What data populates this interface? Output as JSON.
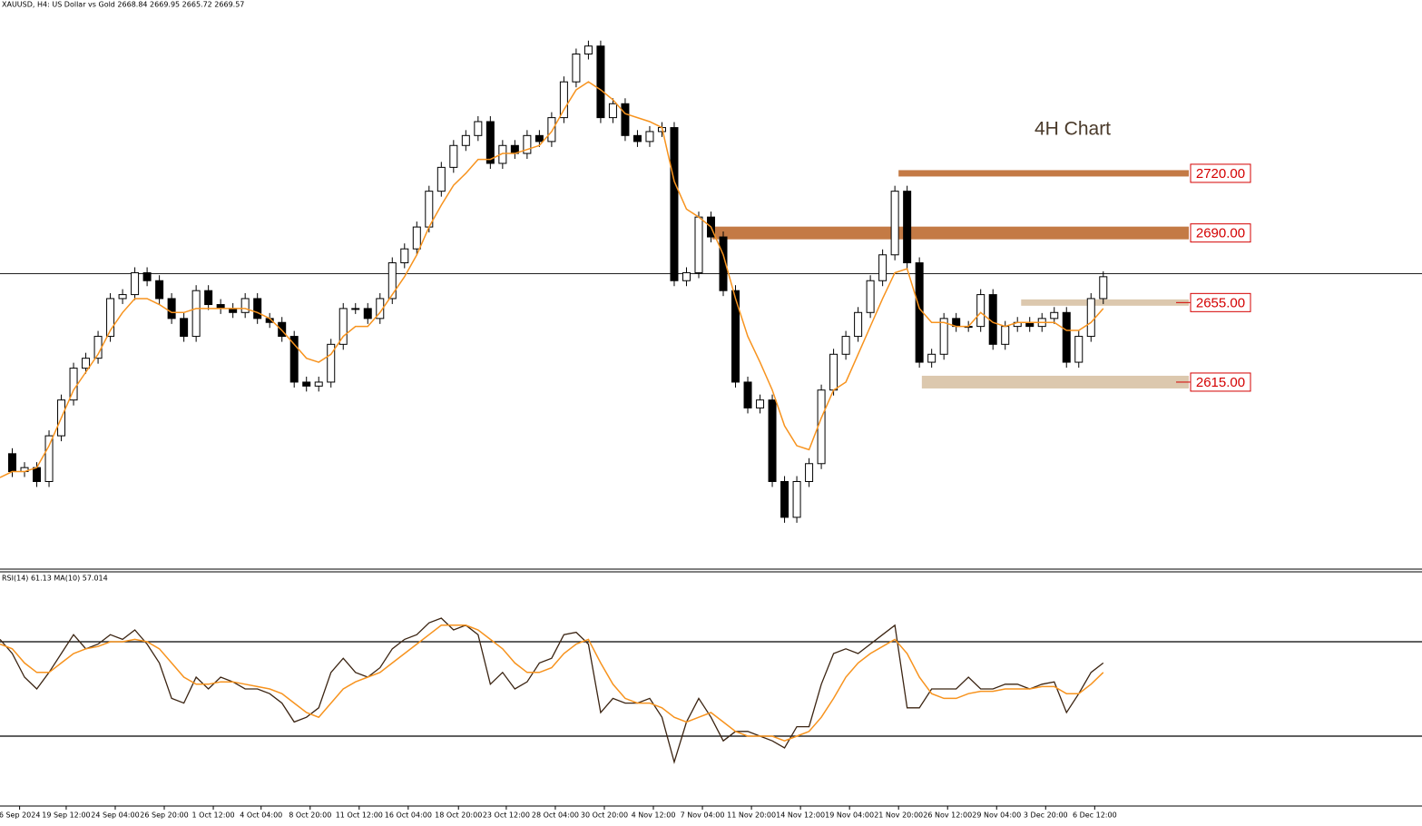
{
  "chart_data": [
    {
      "type": "candle",
      "title": "XAUUSD, H4:  US Dollar vs Gold  2668.84 2669.95 2665.72 2669.57",
      "annotation": "4H Chart",
      "xlim": [
        0,
        116
      ],
      "ylim": [
        2521.4,
        2802.6
      ],
      "last_price": 2669.57,
      "series": [
        {
          "color": "#000000",
          "values": [
            2579,
            2570,
            2572,
            2565,
            2588,
            2606,
            2622,
            2627,
            2638,
            2657,
            2659,
            2670,
            2666,
            2657,
            2647,
            2638,
            2661,
            2654,
            2652,
            2650,
            2657,
            2647,
            2645,
            2638,
            2615,
            2613,
            2615,
            2634,
            2652,
            2652,
            2647,
            2657,
            2675,
            2682,
            2693,
            2711,
            2723,
            2734,
            2739,
            2746,
            2725,
            2734,
            2730,
            2739,
            2736,
            2748,
            2766,
            2780,
            2784,
            2748,
            2755,
            2739,
            2736,
            2741,
            2743,
            2666,
            2670,
            2698,
            2688,
            2661,
            2615,
            2602,
            2606,
            2565,
            2547,
            2565,
            2574,
            2611,
            2629,
            2638,
            2650,
            2666,
            2679,
            2711,
            2675,
            2625,
            2629,
            2647,
            2643,
            2643,
            2659,
            2634,
            2643,
            2645,
            2643,
            2647,
            2650,
            2625,
            2638,
            2657,
            2668
          ]
        },
        {
          "color": "#f7931e",
          "values": [
            2567,
            2570,
            2570,
            2572,
            2583,
            2597,
            2611,
            2620,
            2629,
            2641,
            2650,
            2657,
            2657,
            2654,
            2650,
            2650,
            2652,
            2652,
            2652,
            2652,
            2652,
            2650,
            2647,
            2641,
            2634,
            2627,
            2625,
            2629,
            2638,
            2643,
            2643,
            2650,
            2659,
            2668,
            2679,
            2693,
            2704,
            2714,
            2720,
            2727,
            2727,
            2730,
            2730,
            2732,
            2734,
            2741,
            2752,
            2762,
            2766,
            2762,
            2757,
            2750,
            2748,
            2746,
            2743,
            2716,
            2702,
            2698,
            2693,
            2679,
            2657,
            2638,
            2625,
            2611,
            2593,
            2583,
            2581,
            2597,
            2611,
            2615,
            2629,
            2643,
            2657,
            2670,
            2672,
            2652,
            2645,
            2645,
            2643,
            2643,
            2650,
            2645,
            2643,
            2645,
            2645,
            2645,
            2645,
            2641,
            2641,
            2645,
            2652
          ]
        }
      ],
      "levels": [
        {
          "value": 2720,
          "label": "2720.00",
          "from": 73.3,
          "color": "#c47a45"
        },
        {
          "value": 2690,
          "label": "2690.00",
          "from": 58.1,
          "color": "#c47a45"
        },
        {
          "value": 2655,
          "label": "2655.00",
          "from": 83.3,
          "color": "#dcc8ae"
        },
        {
          "value": 2615,
          "label": "2615.00",
          "from": 75.2,
          "color": "#dcc8ae"
        }
      ]
    },
    {
      "type": "line",
      "title": "RSI(14) 61.13 MA(10) 57.014",
      "xlim": [
        0,
        116
      ],
      "ylim": [
        0,
        100
      ],
      "levels": [
        30,
        70
      ],
      "series": [
        {
          "color": "#3b2412",
          "values": [
            71,
            65,
            55,
            50,
            57,
            65,
            73,
            67,
            69,
            73,
            71,
            75,
            69,
            61,
            46,
            44,
            55,
            50,
            55,
            53,
            50,
            50,
            48,
            44,
            36,
            38,
            42,
            57,
            63,
            57,
            55,
            59,
            67,
            71,
            73,
            78,
            80,
            75,
            77,
            73,
            52,
            57,
            50,
            53,
            61,
            63,
            73,
            74,
            69,
            40,
            46,
            44,
            44,
            46,
            38,
            19,
            36,
            46,
            38,
            28,
            32,
            32,
            30,
            28,
            25,
            34,
            34,
            52,
            65,
            67,
            65,
            69,
            73,
            77,
            42,
            42,
            50,
            50,
            50,
            55,
            50,
            50,
            52,
            52,
            50,
            52,
            53,
            40,
            48,
            57,
            61
          ]
        },
        {
          "color": "#f7931e",
          "values": [
            69,
            67,
            61,
            57,
            57,
            61,
            65,
            67,
            68,
            70,
            70,
            71,
            70,
            67,
            61,
            55,
            52,
            52,
            53,
            53,
            52,
            51,
            50,
            48,
            44,
            40,
            38,
            44,
            50,
            53,
            55,
            57,
            61,
            65,
            69,
            73,
            77,
            77,
            77,
            75,
            71,
            67,
            61,
            57,
            57,
            59,
            65,
            69,
            71,
            61,
            52,
            46,
            44,
            44,
            42,
            38,
            36,
            38,
            40,
            36,
            32,
            30,
            30,
            30,
            28,
            30,
            32,
            38,
            46,
            55,
            61,
            65,
            68,
            71,
            65,
            55,
            48,
            46,
            46,
            48,
            49,
            49,
            50,
            50,
            50,
            51,
            51,
            48,
            48,
            52,
            57
          ]
        }
      ],
      "xticks": [
        {
          "value": 1.6,
          "label": "6 Sep 2024"
        },
        {
          "value": 5.4,
          "label": "19 Sep 12:00"
        },
        {
          "value": 9.4,
          "label": "24 Sep 04:00"
        },
        {
          "value": 13.4,
          "label": "26 Sep 20:00"
        },
        {
          "value": 17.4,
          "label": "1 Oct 12:00"
        },
        {
          "value": 21.3,
          "label": "4 Oct 04:00"
        },
        {
          "value": 25.3,
          "label": "8 Oct 20:00"
        },
        {
          "value": 29.3,
          "label": "11 Oct 12:00"
        },
        {
          "value": 33.3,
          "label": "16 Oct 04:00"
        },
        {
          "value": 37.4,
          "label": "18 Oct 20:00"
        },
        {
          "value": 41.3,
          "label": "23 Oct 12:00"
        },
        {
          "value": 45.3,
          "label": "28 Oct 04:00"
        },
        {
          "value": 49.3,
          "label": "30 Oct 20:00"
        },
        {
          "value": 53.3,
          "label": "4 Nov 12:00"
        },
        {
          "value": 57.3,
          "label": "7 Nov 04:00"
        },
        {
          "value": 61.3,
          "label": "11 Nov 20:00"
        },
        {
          "value": 65.3,
          "label": "14 Nov 12:00"
        },
        {
          "value": 69.3,
          "label": "19 Nov 04:00"
        },
        {
          "value": 73.3,
          "label": "21 Nov 20:00"
        },
        {
          "value": 77.3,
          "label": "26 Nov 12:00"
        },
        {
          "value": 81.3,
          "label": "29 Nov 04:00"
        },
        {
          "value": 85.3,
          "label": "3 Dec 20:00"
        },
        {
          "value": 89.3,
          "label": "6 Dec 12:00"
        }
      ]
    }
  ]
}
